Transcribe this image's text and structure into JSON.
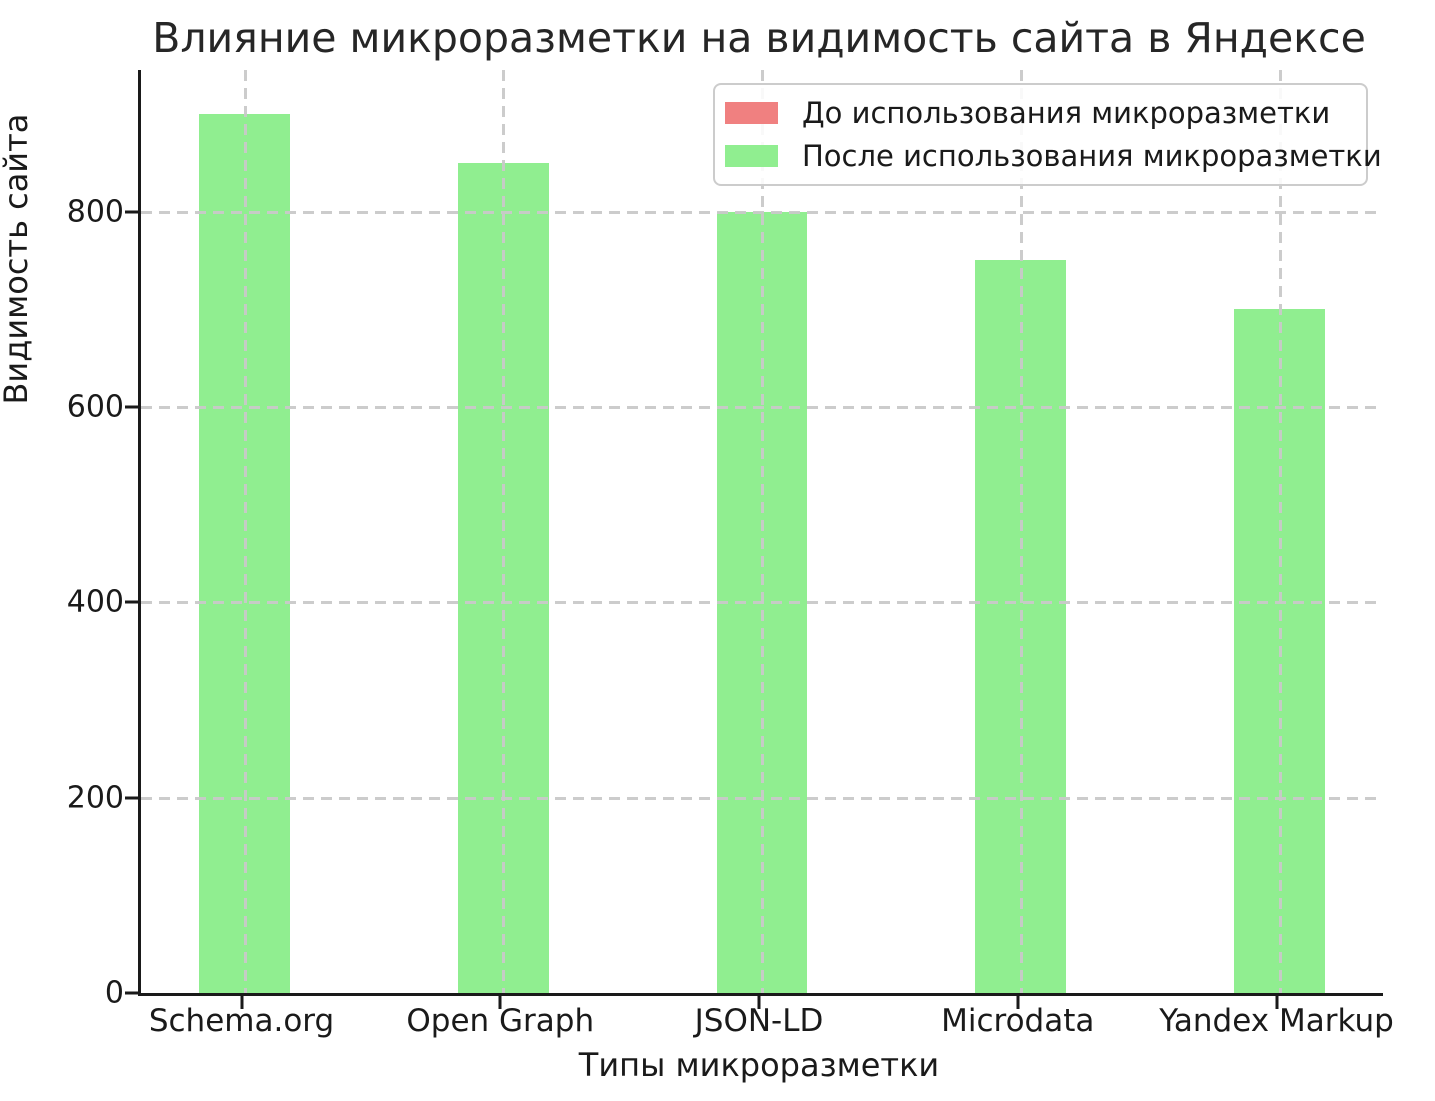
{
  "chart_data": {
    "type": "bar",
    "title": "Влияние микроразметки на видимость сайта в Яндексе",
    "xlabel": "Типы микроразметки",
    "ylabel": "Видимость сайта",
    "categories": [
      "Schema.org",
      "Open Graph",
      "JSON-LD",
      "Microdata",
      "Yandex Markup"
    ],
    "series": [
      {
        "name": "До использования микроразметки",
        "color": "#f08080",
        "values": null,
        "bars_visible": false
      },
      {
        "name": "После использования микроразметки",
        "color": "#90ee90",
        "values": [
          900,
          850,
          800,
          750,
          700
        ],
        "bars_visible": true
      }
    ],
    "yticks": [
      0,
      200,
      400,
      600,
      800
    ],
    "ylim": [
      0,
      945
    ],
    "grid": "dashed, both axes, drawn above bars",
    "legend_position": "upper right"
  },
  "colors": {
    "background": "#ffffff",
    "axis": "#1a1a1a",
    "text": "#262626",
    "grid": "#c9c9c9",
    "legend_border": "#cccccc"
  }
}
